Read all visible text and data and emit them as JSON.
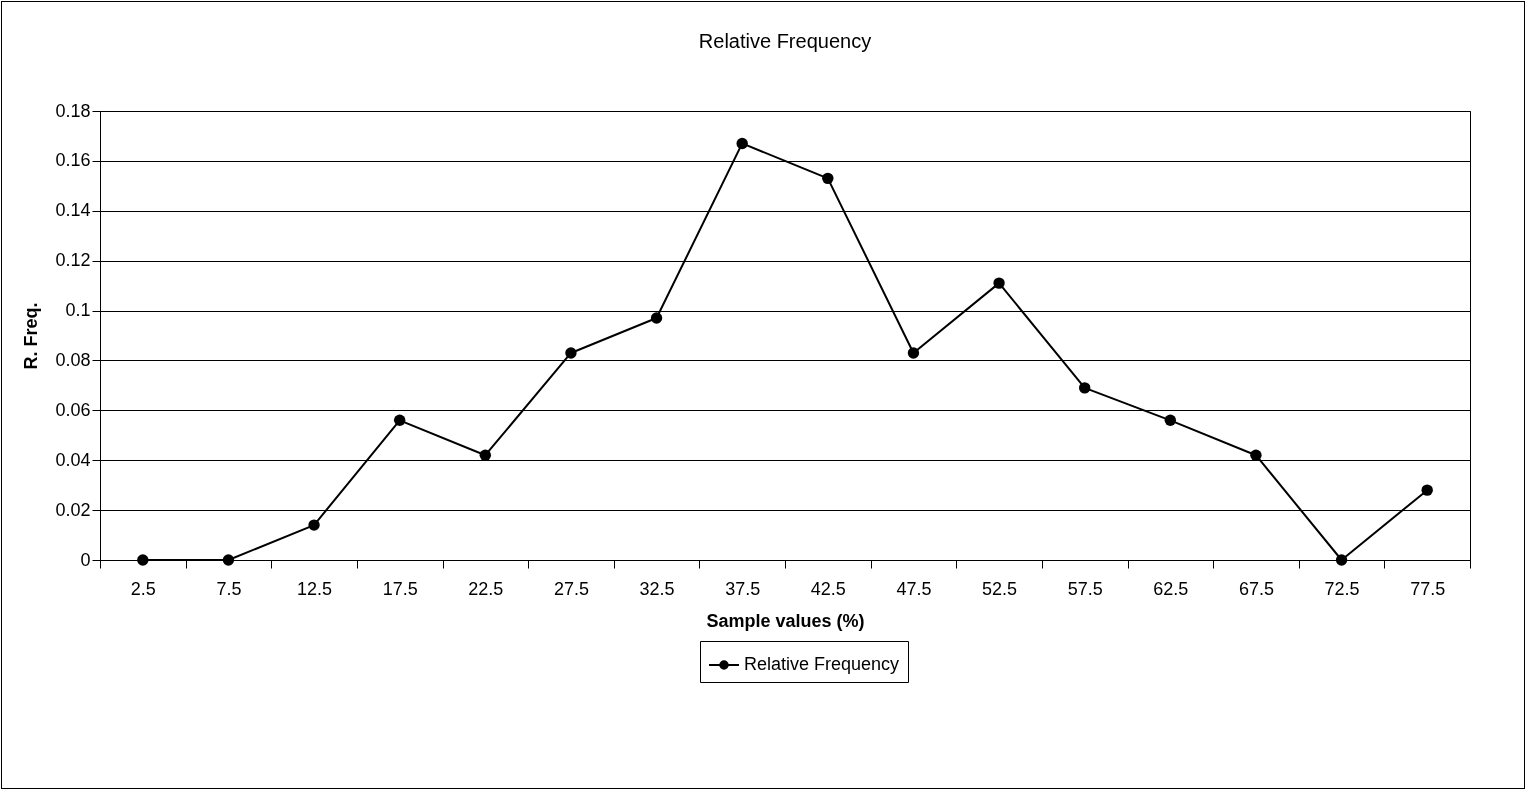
{
  "chart_data": {
    "type": "line",
    "title": "Relative Frequency",
    "xlabel": "Sample values (%)",
    "ylabel": "R. Freq.",
    "categories": [
      "2.5",
      "7.5",
      "12.5",
      "17.5",
      "22.5",
      "27.5",
      "32.5",
      "37.5",
      "42.5",
      "47.5",
      "52.5",
      "57.5",
      "62.5",
      "67.5",
      "72.5",
      "77.5"
    ],
    "series": [
      {
        "name": "Relative Frequency",
        "color": "#000000",
        "values": [
          0,
          0,
          0.014,
          0.056,
          0.042,
          0.083,
          0.097,
          0.167,
          0.153,
          0.083,
          0.111,
          0.069,
          0.056,
          0.042,
          0,
          0.028
        ]
      }
    ],
    "ylim": [
      0,
      0.18
    ],
    "yticks": [
      0,
      0.02,
      0.04,
      0.06,
      0.08,
      0.1,
      0.12,
      0.14,
      0.16,
      0.18
    ],
    "grid": "y",
    "legend": "bottom",
    "marker": "circle",
    "line_style": "solid"
  }
}
